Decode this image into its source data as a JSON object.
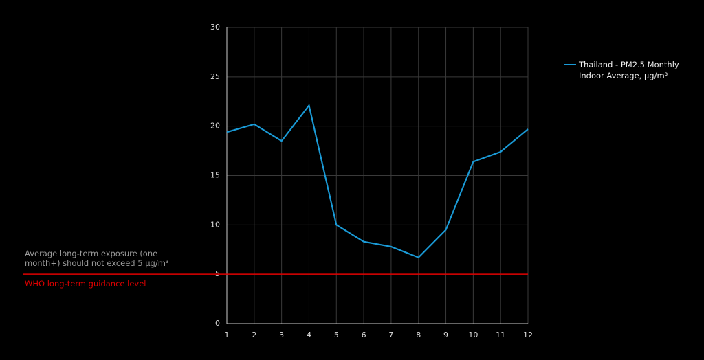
{
  "chart_data": {
    "type": "line",
    "x": [
      1,
      2,
      3,
      4,
      5,
      6,
      7,
      8,
      9,
      10,
      11,
      12
    ],
    "series": [
      {
        "name": "Thailand -  PM2.5 Monthly Indoor Average, μg/m³",
        "color": "#1a9ad6",
        "values": [
          19.4,
          20.2,
          18.5,
          22.1,
          10.0,
          8.3,
          7.8,
          6.7,
          9.5,
          16.4,
          17.4,
          19.7
        ]
      }
    ],
    "xlim": [
      1,
      12
    ],
    "xticks": [
      1,
      2,
      3,
      4,
      5,
      6,
      7,
      8,
      9,
      10,
      11,
      12
    ],
    "ylim": [
      0,
      30
    ],
    "yticks": [
      0,
      5,
      10,
      15,
      20,
      25,
      30
    ],
    "grid": true,
    "legend": "top-right",
    "reference_line": {
      "value": 5,
      "color": "#e00000",
      "label": "WHO long-term guidance level"
    },
    "annotation": "Average long-term exposure (one month+) should not exceed 5 μg/m³"
  }
}
